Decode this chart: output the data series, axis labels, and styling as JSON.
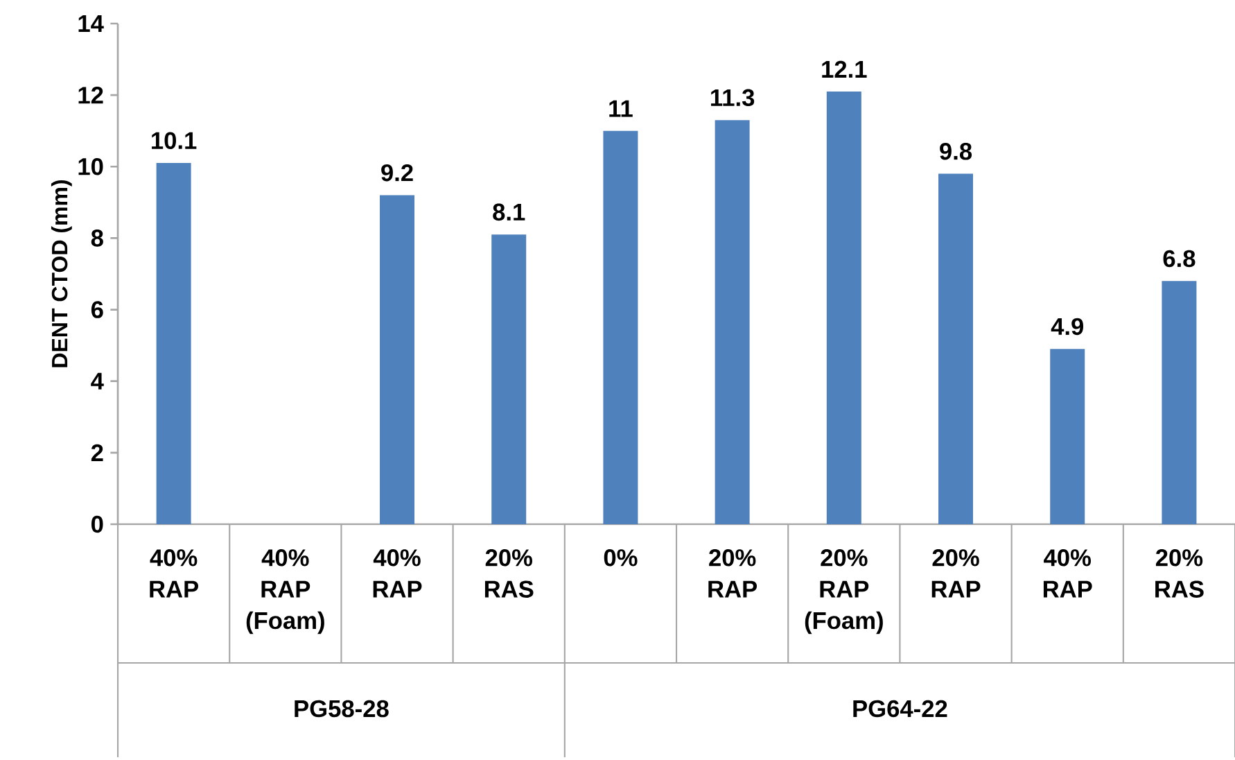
{
  "chart_data": {
    "type": "bar",
    "ylabel": "DENT CTOD (mm)",
    "categories": [
      "40% RAP",
      "40% RAP (Foam)",
      "40% RAP",
      "20% RAS",
      "0%",
      "20% RAP",
      "20% RAP (Foam)",
      "20% RAP",
      "40% RAP",
      "20% RAS"
    ],
    "values": [
      10.1,
      null,
      9.2,
      8.1,
      11,
      11.3,
      12.1,
      9.8,
      4.9,
      6.8
    ],
    "color": "#4f81bd",
    "ylim": [
      0,
      14
    ],
    "yticks": [
      0,
      2,
      4,
      6,
      8,
      10,
      12,
      14
    ],
    "data_labels": true,
    "annotations": [
      "PG58-28",
      "PG64-22"
    ]
  }
}
